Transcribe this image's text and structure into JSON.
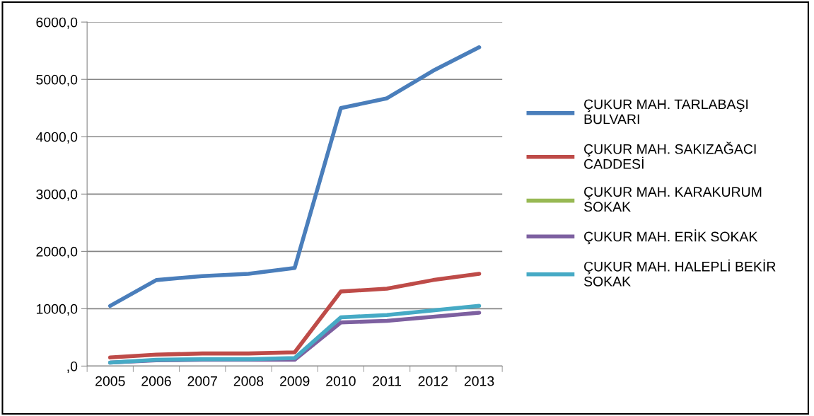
{
  "chart_data": {
    "type": "line",
    "categories": [
      "2005",
      "2006",
      "2007",
      "2008",
      "2009",
      "2010",
      "2011",
      "2012",
      "2013"
    ],
    "series": [
      {
        "name": "ÇUKUR MAH. TARLABAŞI BULVARI",
        "color": "#4a7ebb",
        "values": [
          1050,
          1500,
          1570,
          1610,
          1710,
          4500,
          4670,
          5150,
          5560
        ]
      },
      {
        "name": "ÇUKUR MAH. SAKIZAĞACI CADDESİ",
        "color": "#be4b48",
        "values": [
          150,
          200,
          220,
          220,
          240,
          1300,
          1350,
          1500,
          1610
        ]
      },
      {
        "name": "ÇUKUR MAH. KARAKURUM SOKAK",
        "color": "#98b954",
        "values": [
          null,
          null,
          null,
          null,
          null,
          null,
          null,
          null,
          null
        ]
      },
      {
        "name": "ÇUKUR MAH. ERİK SOKAK",
        "color": "#7d60a0",
        "values": [
          60,
          100,
          110,
          110,
          110,
          760,
          790,
          860,
          930
        ]
      },
      {
        "name": "ÇUKUR MAH. HALEPLİ BEKİR SOKAK",
        "color": "#46aac5",
        "values": [
          60,
          110,
          120,
          120,
          140,
          850,
          890,
          970,
          1050
        ]
      }
    ],
    "ylim": [
      0,
      6000
    ],
    "yticks": [
      {
        "value": 0,
        "label": ",0"
      },
      {
        "value": 1000,
        "label": "1000,0"
      },
      {
        "value": 2000,
        "label": "2000,0"
      },
      {
        "value": 3000,
        "label": "3000,0"
      },
      {
        "value": 4000,
        "label": "4000,0"
      },
      {
        "value": 5000,
        "label": "5000,0"
      },
      {
        "value": 6000,
        "label": "6000,0"
      }
    ],
    "grid": "y",
    "legend": "right",
    "marker": "none",
    "line_style": "solid"
  }
}
